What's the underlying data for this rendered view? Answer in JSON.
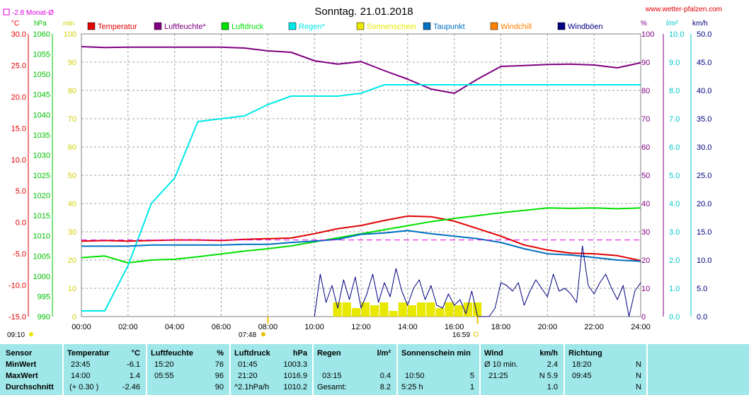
{
  "header": {
    "title": "Sonntag. 21.01.2018",
    "website": "www.wetter-pfalzen.com",
    "monthly_avg": "-2.8 Monat-Ø"
  },
  "axes": {
    "temp_unit": "°C",
    "press_unit": "hPa",
    "sun_unit": "min",
    "hum_unit": "%",
    "rain_unit": "l/m²",
    "wind_unit": "km/h",
    "temp_ticks": [
      "30.0",
      "25.0",
      "20.0",
      "15.0",
      "10.0",
      "5.0",
      "0.0",
      "-5.0",
      "-10.0",
      "-15.0"
    ],
    "press_ticks": [
      "1060",
      "1055",
      "1050",
      "1045",
      "1040",
      "1035",
      "1030",
      "1025",
      "1020",
      "1015",
      "1010",
      "1005",
      "1000",
      "995",
      "990"
    ],
    "sun_ticks": [
      "100",
      "90",
      "80",
      "70",
      "60",
      "50",
      "40",
      "30",
      "20",
      "10",
      "0"
    ],
    "hum_ticks": [
      "100",
      "90",
      "80",
      "70",
      "60",
      "50",
      "40",
      "30",
      "20",
      "10",
      "0"
    ],
    "rain_ticks": [
      "10.0",
      "9.0",
      "8.0",
      "7.0",
      "6.0",
      "5.0",
      "4.0",
      "3.0",
      "2.0",
      "1.0",
      "0.0"
    ],
    "wind_ticks": [
      "50.0",
      "45.0",
      "40.0",
      "35.0",
      "30.0",
      "25.0",
      "20.0",
      "15.0",
      "10.0",
      "5.0",
      "0.0"
    ],
    "time_ticks": [
      "00:00",
      "02:00",
      "04:00",
      "06:00",
      "08:00",
      "10:00",
      "12:00",
      "14:00",
      "16:00",
      "18:00",
      "20:00",
      "22:00",
      "24:00"
    ],
    "sunrise": "07:48",
    "sunset": "16:59",
    "sun_start": "09:10"
  },
  "legend": [
    {
      "label": "Temperatur",
      "color": "#e00000"
    },
    {
      "label": "Luftfeuchte*",
      "color": "#800080"
    },
    {
      "label": "Luftdruck",
      "color": "#00e000"
    },
    {
      "label": "Regen*",
      "color": "#00e8e8"
    },
    {
      "label": "Sonnenschein",
      "color": "#e8e800"
    },
    {
      "label": "Taupunkt",
      "color": "#0070c0"
    },
    {
      "label": "Windchill",
      "color": "#ff8000"
    },
    {
      "label": "Windböen",
      "color": "#000080"
    }
  ],
  "chart_data": {
    "type": "line",
    "title": "Sonntag. 21.01.2018",
    "x_range": [
      "00:00",
      "24:00"
    ],
    "x_hours": [
      0,
      1,
      2,
      3,
      4,
      5,
      6,
      7,
      8,
      9,
      10,
      11,
      12,
      13,
      14,
      15,
      16,
      17,
      18,
      19,
      20,
      21,
      22,
      23,
      24
    ],
    "series": [
      {
        "name": "Temperatur",
        "unit": "°C",
        "ylim": [
          -15,
          30
        ],
        "values": [
          -3.0,
          -2.9,
          -3.0,
          -2.9,
          -2.8,
          -2.8,
          -2.9,
          -2.7,
          -2.6,
          -2.5,
          -1.8,
          -1.0,
          -0.5,
          0.3,
          1.0,
          0.9,
          0.2,
          -1.0,
          -2.2,
          -3.6,
          -4.4,
          -4.9,
          -5.0,
          -5.3,
          -6.1
        ]
      },
      {
        "name": "Luftfeuchte*",
        "unit": "%",
        "ylim": [
          0,
          100
        ],
        "values": [
          95.5,
          95.2,
          95.3,
          95.3,
          95.3,
          95.3,
          95.3,
          95.0,
          94.0,
          93.5,
          90.5,
          89.3,
          90.2,
          87.0,
          84.0,
          80.5,
          79.0,
          84.0,
          88.5,
          88.8,
          89.2,
          89.3,
          89.0,
          88.0,
          89.8
        ]
      },
      {
        "name": "Luftdruck",
        "unit": "hPa",
        "ylim": [
          990,
          1060
        ],
        "values": [
          1004.6,
          1005.0,
          1003.3,
          1004.0,
          1004.2,
          1004.8,
          1005.5,
          1006.2,
          1006.8,
          1007.5,
          1008.5,
          1009.5,
          1010.5,
          1011.5,
          1012.5,
          1013.5,
          1014.3,
          1015.0,
          1015.7,
          1016.3,
          1016.9,
          1016.8,
          1016.9,
          1016.7,
          1016.9
        ]
      },
      {
        "name": "Regen*",
        "unit": "l/m²",
        "ylim": [
          0,
          10
        ],
        "values": [
          0.2,
          0.2,
          1.8,
          4.0,
          4.9,
          6.9,
          7.0,
          7.1,
          7.5,
          7.8,
          7.8,
          7.8,
          7.9,
          8.2,
          8.2,
          8.2,
          8.2,
          8.2,
          8.2,
          8.2,
          8.2,
          8.2,
          8.2,
          8.2,
          8.2
        ]
      },
      {
        "name": "Taupunkt",
        "unit": "°C",
        "ylim": [
          -15,
          30
        ],
        "values": [
          -3.8,
          -3.8,
          -3.8,
          -3.6,
          -3.6,
          -3.6,
          -3.6,
          -3.5,
          -3.5,
          -3.2,
          -3.0,
          -2.7,
          -1.9,
          -1.7,
          -1.3,
          -1.8,
          -2.2,
          -2.6,
          -3.2,
          -4.2,
          -5.0,
          -5.2,
          -5.6,
          -6.0,
          -6.2
        ]
      },
      {
        "name": "Windböen",
        "unit": "km/h",
        "ylim": [
          0,
          50
        ],
        "x": [
          10.0,
          10.25,
          10.5,
          10.75,
          11.0,
          11.25,
          11.5,
          11.75,
          12.0,
          12.25,
          12.5,
          12.75,
          13.0,
          13.25,
          13.5,
          13.75,
          14.0,
          14.25,
          14.5,
          14.75,
          15.0,
          15.25,
          15.5,
          15.75,
          16.0,
          16.25,
          16.5,
          16.75,
          17.0,
          17.25,
          17.5,
          17.75,
          18.0,
          18.25,
          18.5,
          18.75,
          19.0,
          19.25,
          19.5,
          19.75,
          20.0,
          20.25,
          20.5,
          20.75,
          21.0,
          21.25,
          21.5,
          21.75,
          22.0,
          22.25,
          22.5,
          22.75,
          23.0,
          23.25,
          23.5,
          23.75,
          24.0
        ],
        "values": [
          0,
          7.5,
          2.5,
          5.5,
          1.5,
          6.5,
          3.0,
          7.0,
          1.5,
          4.0,
          7.5,
          2.5,
          6.0,
          3.5,
          8.5,
          4.5,
          2.0,
          5.0,
          6.5,
          3.0,
          5.5,
          2.0,
          1.5,
          4.0,
          2.0,
          3.0,
          0.5,
          4.5,
          0,
          0,
          0,
          1.5,
          6.0,
          5.5,
          4.5,
          6.0,
          2.0,
          4.5,
          6.5,
          5.0,
          3.5,
          7.5,
          4.5,
          5.0,
          4.0,
          2.5,
          12.5,
          5.5,
          4.0,
          6.0,
          7.5,
          5.0,
          3.0,
          5.5,
          0,
          4.5,
          6.0
        ]
      },
      {
        "name": "Sonnenschein",
        "unit": "min",
        "ylim": [
          0,
          100
        ],
        "x": [
          10.8,
          11.2,
          11.6,
          12.0,
          12.4,
          12.8,
          13.2,
          13.6,
          14.0,
          14.4,
          14.8,
          15.2,
          15.6,
          16.0,
          16.4,
          16.8
        ],
        "values": [
          5,
          5,
          3,
          5,
          4,
          5,
          2,
          5,
          4,
          5,
          5,
          3,
          5,
          4,
          5,
          5
        ]
      },
      {
        "name": "Monat-Ø",
        "unit": "°C",
        "ylim": [
          -15,
          30
        ],
        "x": [
          0,
          24
        ],
        "values": [
          -2.8,
          -2.8
        ]
      }
    ],
    "grid": true
  },
  "table": {
    "row_labels": [
      "Sensor",
      "MinWert",
      "MaxWert",
      "Durchschnitt"
    ],
    "temperature": {
      "header": "Temperatur",
      "unit": "°C",
      "min_time": "23:45",
      "min_val": "-6.1",
      "max_time": "14:00",
      "max_val": "1.4",
      "avg_note": "(+ 0.30 )",
      "avg_val": "-2.46"
    },
    "humidity": {
      "header": "Luftfeuchte",
      "unit": "%",
      "min_time": "15:20",
      "min_val": "76",
      "max_time": "05:55",
      "max_val": "96",
      "avg_val": "90"
    },
    "pressure": {
      "header": "Luftdruck",
      "unit": "hPa",
      "min_time": "01:45",
      "min_val": "1003.3",
      "max_time": "21:20",
      "max_val": "1016.9",
      "avg_note": "^2.1hPa/h",
      "avg_val": "1010.2"
    },
    "rain": {
      "header": "Regen",
      "unit": "l/m²",
      "max_time": "03:15",
      "max_val": "0.4",
      "total_label": "Gesamt:",
      "total_val": "8.2"
    },
    "sun": {
      "header": "Sonnenschein min",
      "max_time": "10:50",
      "max_val": "5",
      "total_label": "5:25 h",
      "total_val": "1"
    },
    "wind": {
      "header": "Wind",
      "unit": "km/h",
      "min_label": "Ø 10 min.",
      "min_val": "2.4",
      "max_time": "21:25",
      "max_val": "N 5.9",
      "avg_val": "1.0"
    },
    "direction": {
      "header": "Richtung",
      "min_time": "18:20",
      "min_val": "N",
      "max_time": "09:45",
      "max_val": "N",
      "avg_val": "N"
    }
  }
}
